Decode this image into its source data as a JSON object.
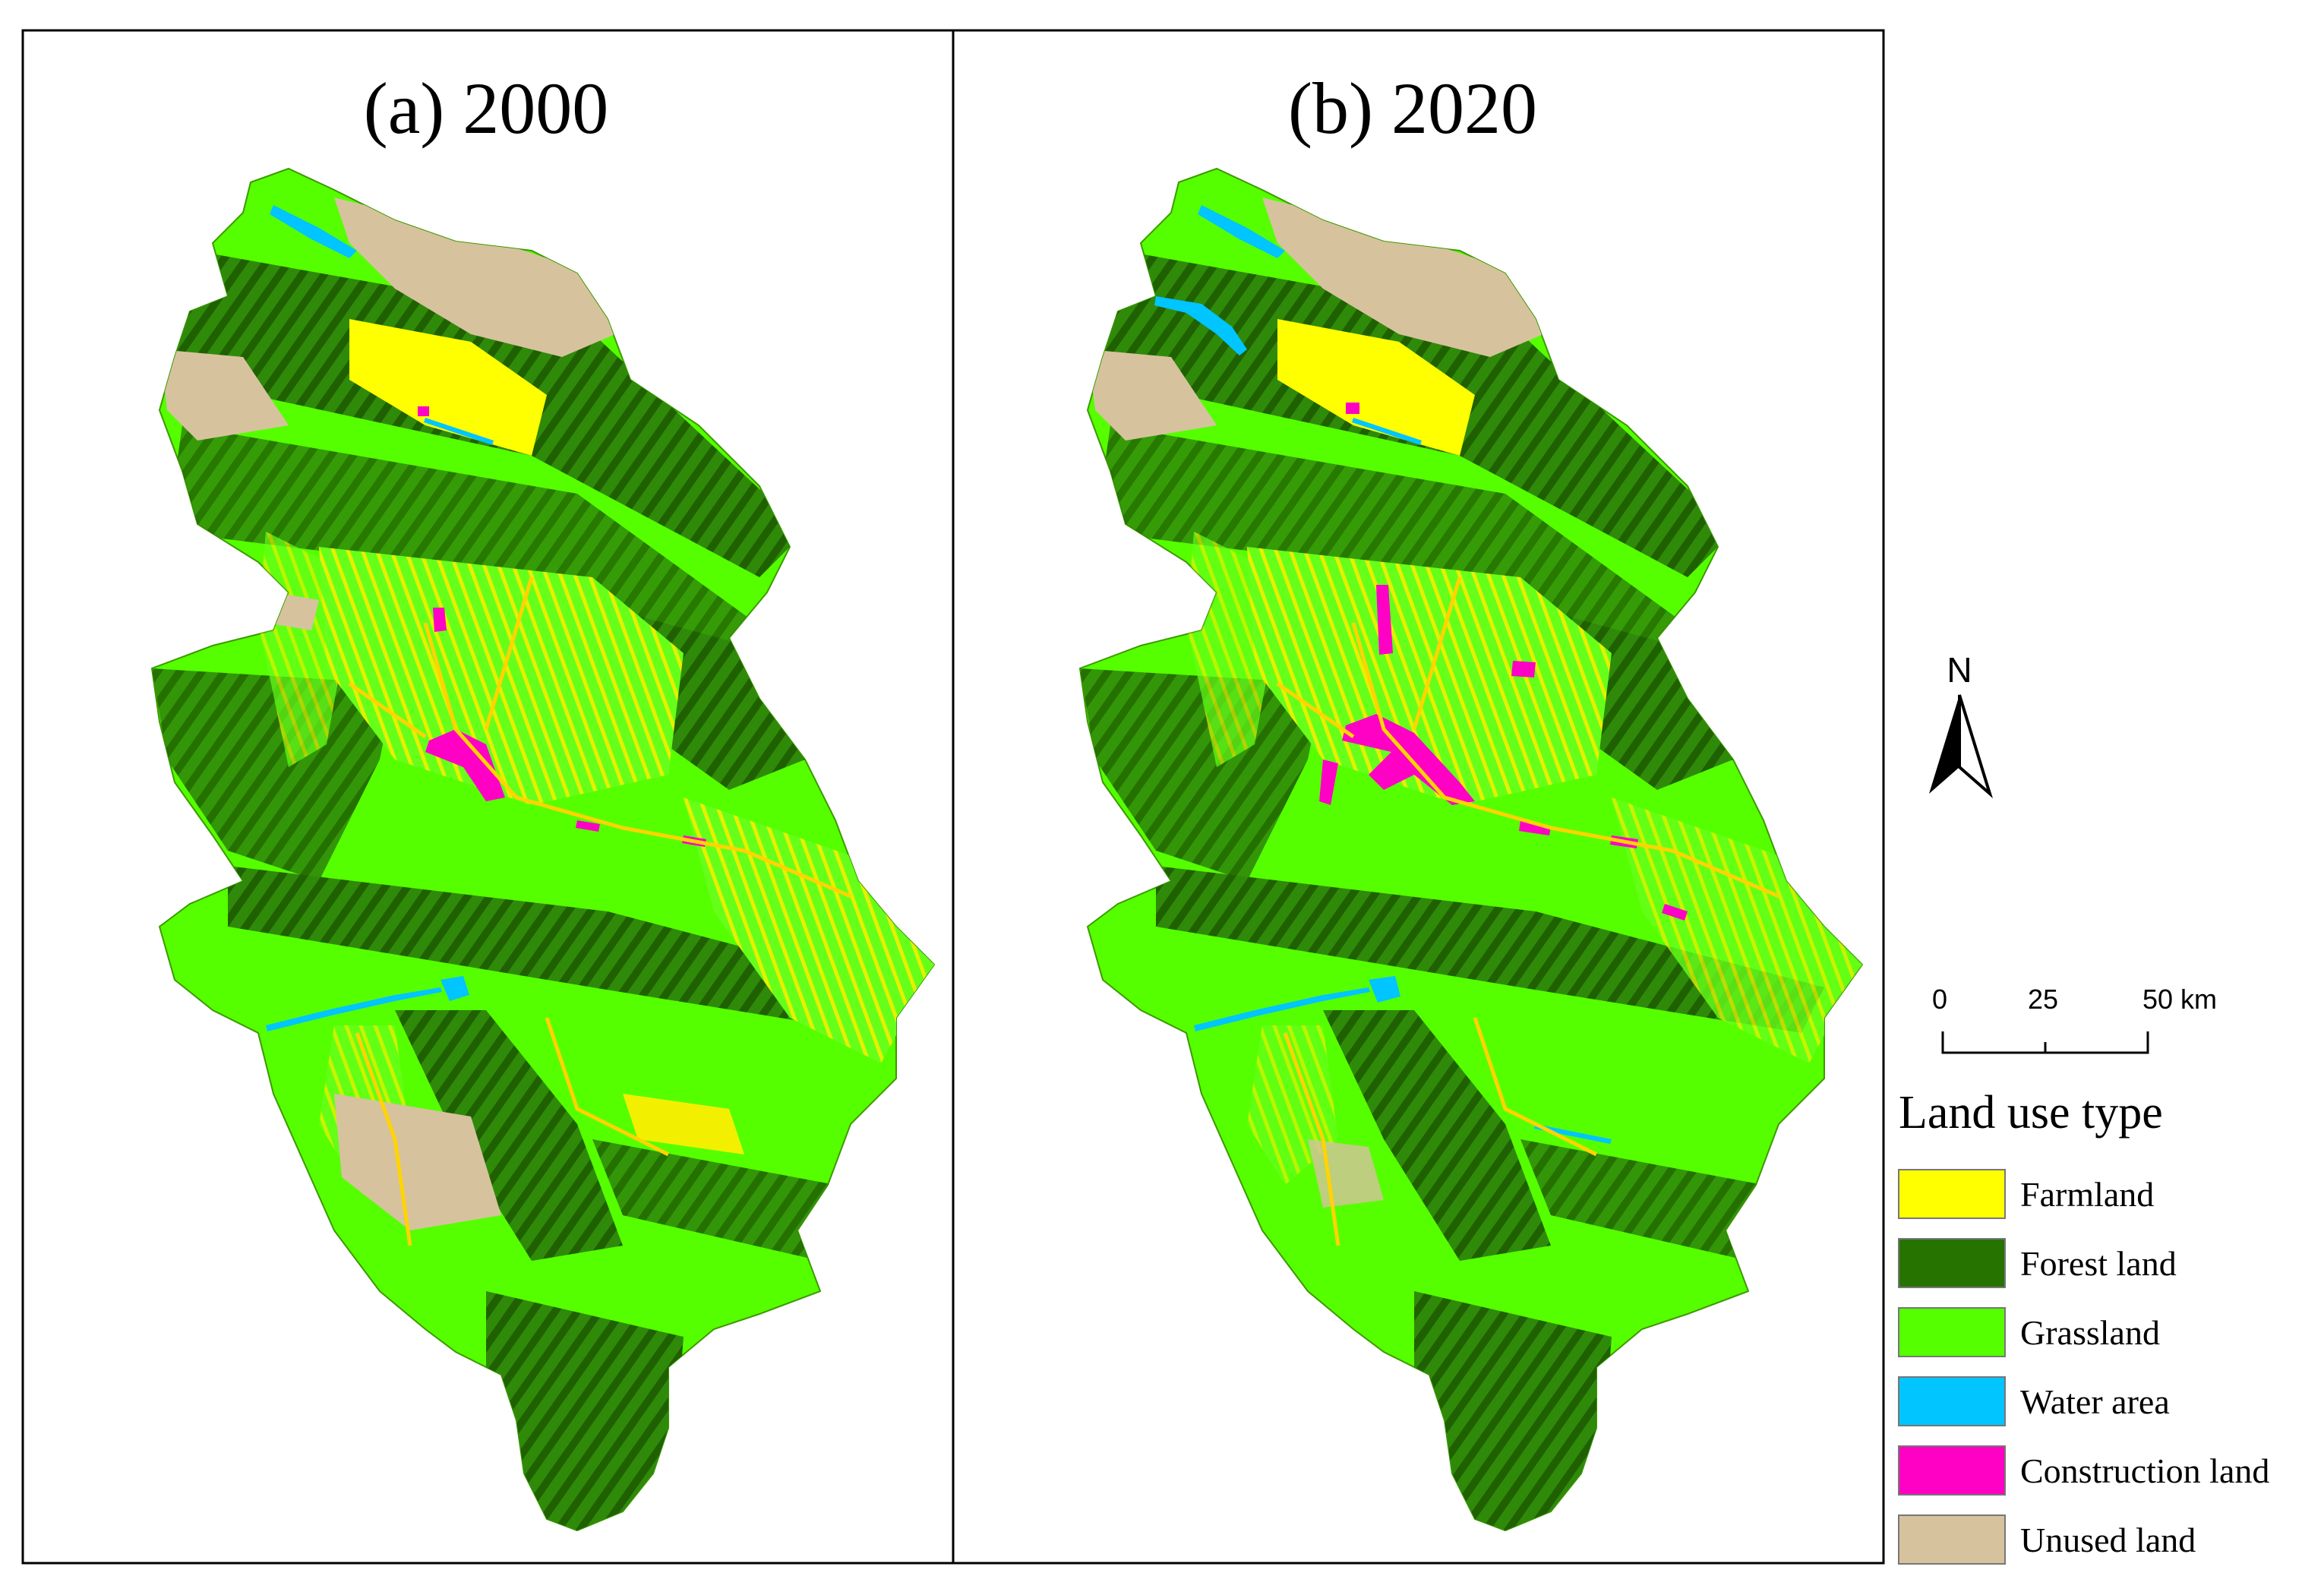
{
  "panels": [
    {
      "title": "(a) 2000",
      "year": 2000
    },
    {
      "title": "(b) 2020",
      "year": 2020
    }
  ],
  "north_arrow": {
    "label": "N"
  },
  "scale_bar": {
    "ticks": [
      "0",
      "25",
      "50 km"
    ]
  },
  "legend": {
    "title": "Land use type",
    "items": [
      {
        "label": "Farmland",
        "color": "#ffff00"
      },
      {
        "label": "Forest land",
        "color": "#267300"
      },
      {
        "label": "Grassland",
        "color": "#55ff00"
      },
      {
        "label": "Water area",
        "color": "#00c5ff"
      },
      {
        "label": "Construction land",
        "color": "#ff00c5"
      },
      {
        "label": "Unused land",
        "color": "#d7c29e"
      }
    ]
  }
}
